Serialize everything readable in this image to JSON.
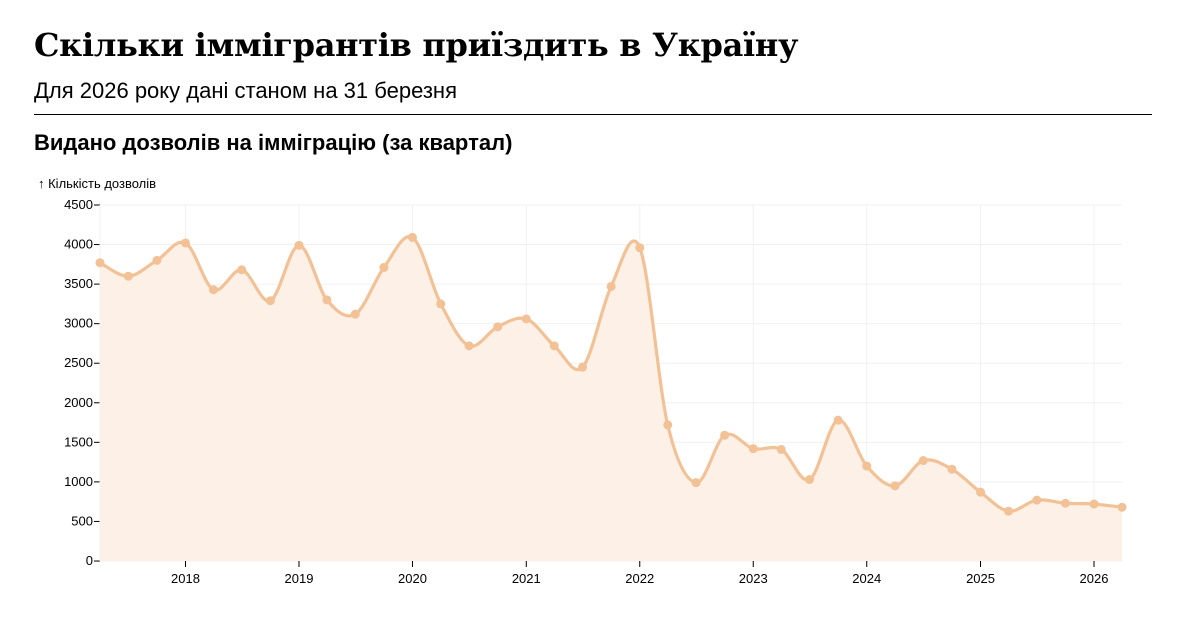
{
  "header": {
    "title": "Скільки іммігрантів приїздить в Україну",
    "subtitle": "Для 2026 року дані станом на 31 березня"
  },
  "chart_data": {
    "type": "area",
    "title": "Видано дозволів на імміграцію (за квартал)",
    "ylabel": "↑ Кількість дозволів",
    "xlabel": "",
    "ylim": [
      0,
      4500
    ],
    "xlim": [
      "2017-04-01",
      "2026-04-01"
    ],
    "yticks": [
      0,
      500,
      1000,
      1500,
      2000,
      2500,
      3000,
      3500,
      4000,
      4500
    ],
    "xticks": [
      "2018",
      "2019",
      "2020",
      "2021",
      "2022",
      "2023",
      "2024",
      "2025",
      "2026"
    ],
    "grid": true,
    "colors": {
      "line": "#f2c195",
      "fill": "#fdf0e6",
      "grid": "#f0f0f0"
    },
    "series": [
      {
        "x": [
          "2017-04-01",
          "2017-07-01",
          "2017-10-01",
          "2018-01-01",
          "2018-04-01",
          "2018-07-01",
          "2018-10-01",
          "2019-01-01",
          "2019-04-01",
          "2019-07-01",
          "2019-10-01",
          "2020-01-01",
          "2020-04-01",
          "2020-07-01",
          "2020-10-01",
          "2021-01-01",
          "2021-04-01",
          "2021-07-01",
          "2021-10-01",
          "2022-01-01",
          "2022-04-01",
          "2022-07-01",
          "2022-10-01",
          "2023-01-01",
          "2023-04-01",
          "2023-07-01",
          "2023-10-01",
          "2024-01-01",
          "2024-04-01",
          "2024-07-01",
          "2024-10-01",
          "2025-01-01",
          "2025-04-01",
          "2025-07-01",
          "2025-10-01",
          "2026-01-01",
          "2026-04-01"
        ],
        "values": [
          3770,
          3600,
          3800,
          4020,
          3430,
          3680,
          3290,
          3990,
          3300,
          3120,
          3710,
          4090,
          3250,
          2720,
          2960,
          3060,
          2720,
          2450,
          3470,
          3960,
          1720,
          990,
          1590,
          1420,
          1410,
          1030,
          1780,
          1200,
          950,
          1270,
          1160,
          870,
          630,
          770,
          730,
          720,
          680
        ]
      }
    ]
  }
}
